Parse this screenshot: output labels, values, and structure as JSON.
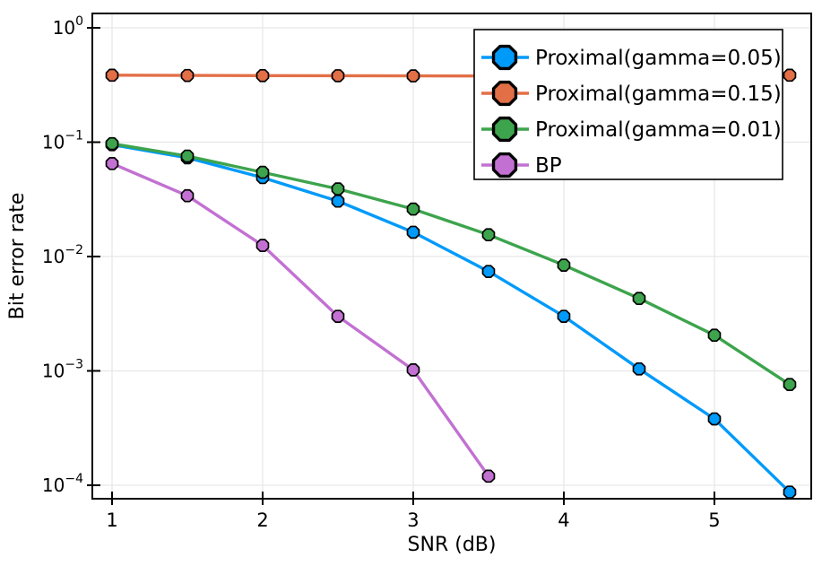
{
  "figure": {
    "background": "#ffffff",
    "frame_color": "#000000",
    "grid_color": "#e6e6e6"
  },
  "chart_data": {
    "type": "line",
    "title": "",
    "xlabel": "SNR (dB)",
    "ylabel": "Bit error rate",
    "x_scale": "linear",
    "y_scale": "log10",
    "grid": true,
    "legend_position": "top-right",
    "xlim": [
      0.869,
      5.643
    ],
    "ylim_exponents": [
      0.1255,
      -4.118
    ],
    "x_ticks": [
      1,
      2,
      3,
      4,
      5
    ],
    "y_tick_exponents": [
      0,
      -1,
      -2,
      -3,
      -4
    ],
    "x": [
      1.0,
      1.5,
      2.0,
      2.5,
      3.0,
      3.5,
      4.0,
      4.5,
      5.0,
      5.5
    ],
    "series": [
      {
        "name": "Proximal(gamma=0.05)",
        "color": "#009af9",
        "values": [
          0.095,
          0.073,
          0.049,
          0.0305,
          0.0163,
          0.0074,
          0.003,
          0.00104,
          0.00038,
          8.7e-05
        ]
      },
      {
        "name": "Proximal(gamma=0.15)",
        "color": "#e36f47",
        "values": [
          0.385,
          0.383,
          0.382,
          0.381,
          0.38,
          0.379,
          0.379,
          0.378,
          0.378,
          0.385
        ]
      },
      {
        "name": "Proximal(gamma=0.01)",
        "color": "#3da44d",
        "values": [
          0.097,
          0.0755,
          0.0545,
          0.039,
          0.026,
          0.0155,
          0.0084,
          0.0043,
          0.00205,
          0.00076
        ]
      },
      {
        "name": "BP",
        "color": "#c271d2",
        "values": [
          0.065,
          0.034,
          0.0125,
          0.003,
          0.00102,
          0.00012,
          null,
          null,
          null,
          null
        ]
      }
    ]
  }
}
